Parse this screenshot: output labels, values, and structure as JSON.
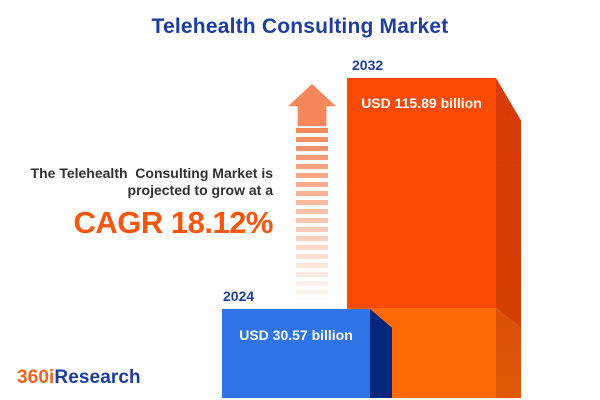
{
  "chart_data": {
    "type": "bar",
    "title": "Telehealth Consulting Market",
    "categories": [
      "2024",
      "2032"
    ],
    "values": [
      30.57,
      115.89
    ],
    "unit": "USD billion",
    "value_labels": [
      "USD 30.57 billion",
      "USD 115.89 billion"
    ],
    "bar_colors": [
      "#2f73e6",
      "#fb4a05"
    ],
    "growth_annotation": "CAGR 18.12%",
    "cagr_percent": 18.12,
    "legend_position": "none",
    "axes": "none"
  },
  "growth": {
    "line1": "The Telehealth  Consulting Market is",
    "line2": "projected to grow at a",
    "cagr": "CAGR 18.12%"
  },
  "logo": {
    "prefix": "360i",
    "suffix": "Research"
  },
  "colors": {
    "title_blue": "#1f3d9c",
    "cagr_orange": "#f4570f",
    "bar_2024_face": "#2f73e6",
    "bar_2024_side": "#05287c",
    "bar_2032_face_upper": "#fb4a05",
    "bar_2032_face_lower": "#fd6a04",
    "bar_2032_side_upper": "#d83c06",
    "bar_2032_side_lower": "#dc5404",
    "arrow_orange": "#f5875a",
    "logo_orange": "#f2641d",
    "logo_blue": "#1e3c9c",
    "text_dark": "#33302d",
    "background": "#ffffff"
  }
}
